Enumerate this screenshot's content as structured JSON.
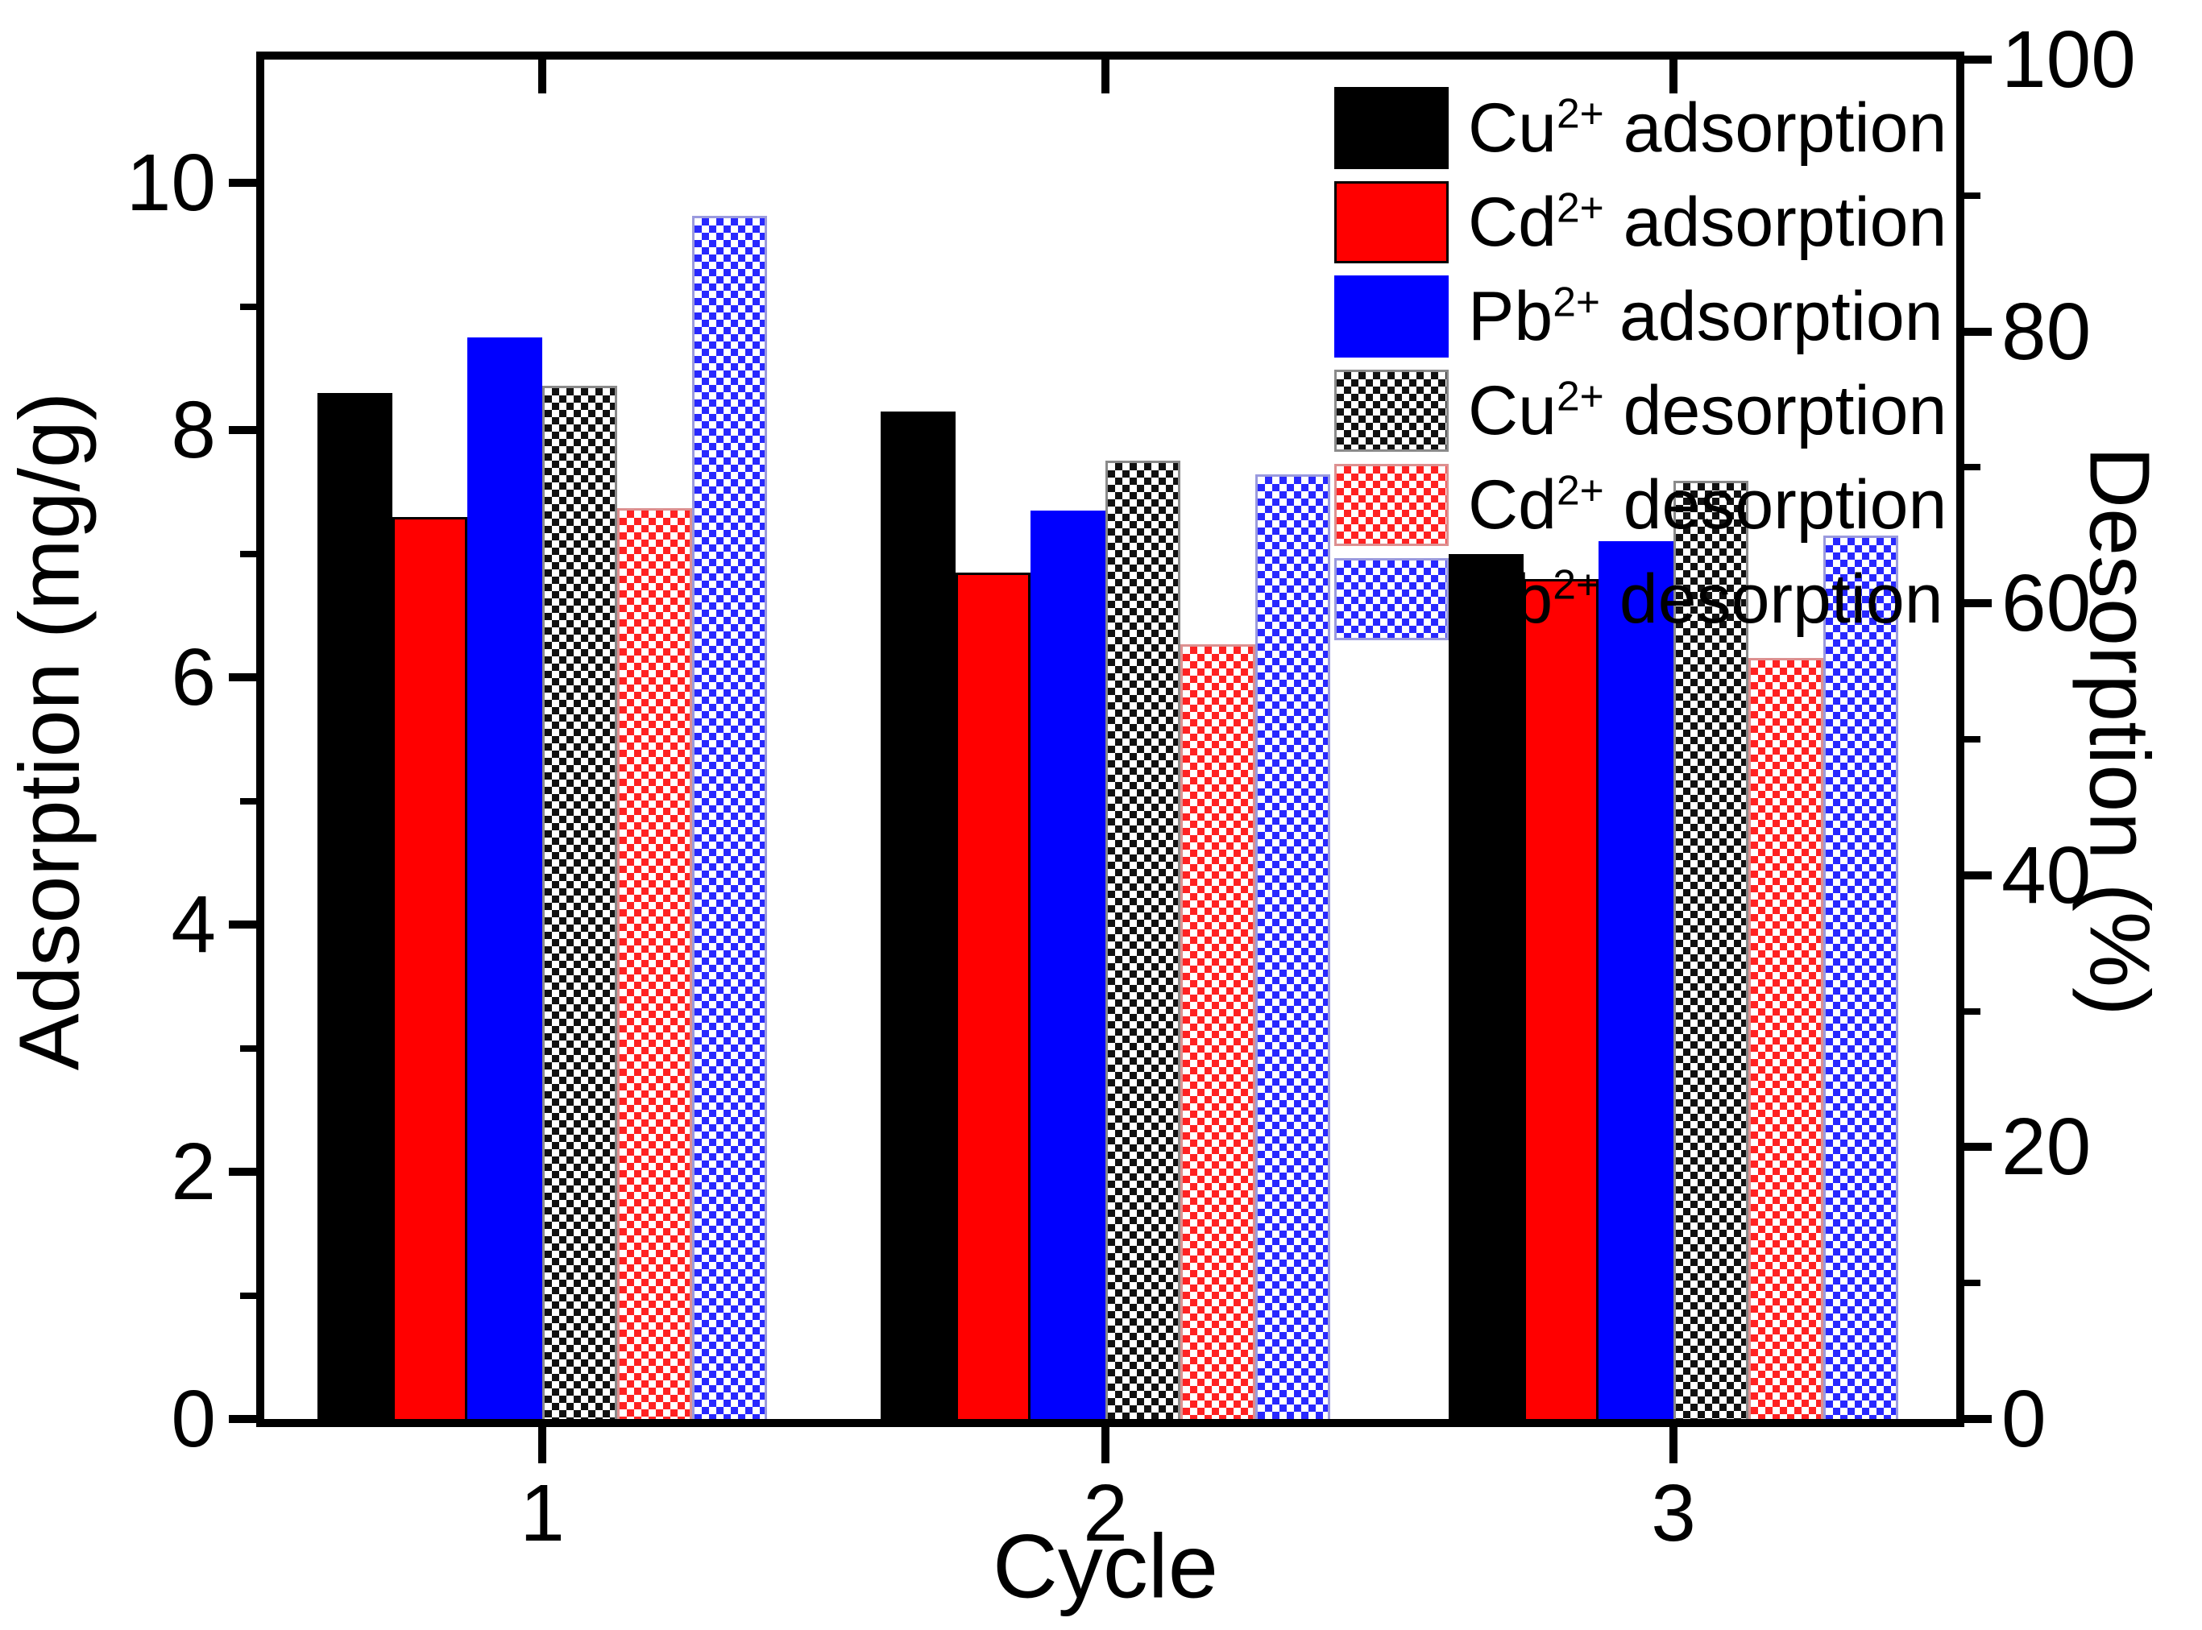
{
  "chart_data": {
    "type": "bar",
    "title": "",
    "categories": [
      "1",
      "2",
      "3"
    ],
    "xlabel": "Cycle",
    "ylabel_left": "Adsorption (mg/g)",
    "ylabel_right": "Desorption (%)",
    "ylim_left": [
      0,
      11
    ],
    "ylim_right": [
      0,
      100
    ],
    "yticks_left": [
      0,
      2,
      4,
      6,
      8,
      10
    ],
    "yticks_minor_left": [
      1,
      3,
      5,
      7,
      9
    ],
    "yticks_right": [
      0,
      20,
      40,
      60,
      80,
      100
    ],
    "yticks_minor_right": [
      10,
      30,
      50,
      70,
      90
    ],
    "grid": false,
    "legend_position": "top-right-inside",
    "background_color": "#ffffff",
    "axis_color": "#000000",
    "series": [
      {
        "id": "cu-adsorption",
        "ion": "Cu",
        "charge": "2+",
        "kind": "adsorption",
        "label": "Cu2+ adsorption",
        "axis": "left",
        "fill": "solid",
        "color": "#000000",
        "border_color": "#000000",
        "values": [
          8.3,
          8.15,
          7.0
        ]
      },
      {
        "id": "cd-adsorption",
        "ion": "Cd",
        "charge": "2+",
        "kind": "adsorption",
        "label": "Cd2+ adsorption",
        "axis": "left",
        "fill": "solid",
        "color": "#ff0000",
        "border_color": "#000000",
        "values": [
          7.3,
          6.85,
          6.8
        ]
      },
      {
        "id": "pb-adsorption",
        "ion": "Pb",
        "charge": "2+",
        "kind": "adsorption",
        "label": "Pb2+ adsorption",
        "axis": "left",
        "fill": "solid",
        "color": "#0000ff",
        "border_color": "#0000ff",
        "values": [
          8.75,
          7.35,
          7.1
        ]
      },
      {
        "id": "cu-desorption",
        "ion": "Cu",
        "charge": "2+",
        "kind": "desorption",
        "label": "Cu2+ desorption",
        "axis": "right",
        "fill": "checker",
        "color": "#111111",
        "border_color": "#8a8a8a",
        "values": [
          76,
          70.5,
          69
        ]
      },
      {
        "id": "cd-desorption",
        "ion": "Cd",
        "charge": "2+",
        "kind": "desorption",
        "label": "Cd2+ desorption",
        "axis": "right",
        "fill": "checker",
        "color": "#ff2222",
        "border_color": "#dd9090",
        "values": [
          67,
          57,
          56
        ]
      },
      {
        "id": "pb-desorption",
        "ion": "Pb",
        "charge": "2+",
        "kind": "desorption",
        "label": "Pb2+ desorption",
        "axis": "right",
        "fill": "checker",
        "color": "#2828ff",
        "border_color": "#9a9ade",
        "values": [
          88.5,
          69.5,
          65
        ]
      }
    ]
  }
}
